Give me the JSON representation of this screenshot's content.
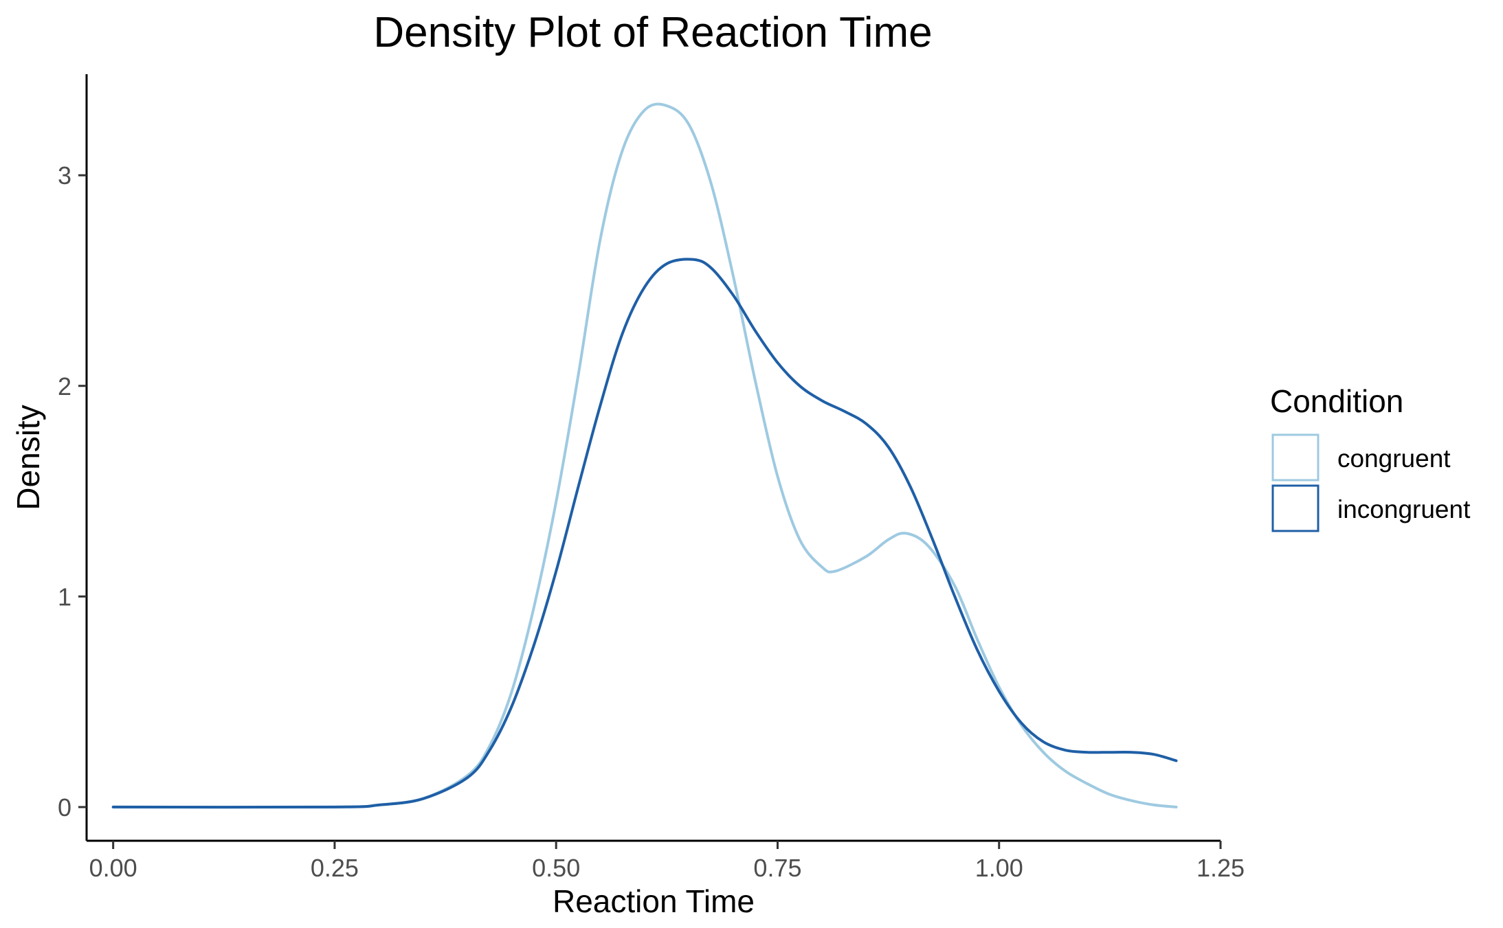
{
  "chart_data": {
    "type": "line",
    "title": "Density Plot of Reaction Time",
    "xlabel": "Reaction Time",
    "ylabel": "Density",
    "xlim": [
      -0.03,
      1.25
    ],
    "ylim": [
      -0.16,
      3.48
    ],
    "x_ticks": [
      0.0,
      0.25,
      0.5,
      0.75,
      1.0,
      1.25
    ],
    "x_tick_labels": [
      "0.00",
      "0.25",
      "0.50",
      "0.75",
      "1.00",
      "1.25"
    ],
    "y_ticks": [
      0,
      1,
      2,
      3
    ],
    "y_tick_labels": [
      "0",
      "1",
      "2",
      "3"
    ],
    "grid": false,
    "legend": {
      "title": "Condition",
      "position": "right"
    },
    "series": [
      {
        "name": "congruent",
        "color": "#9ecae1",
        "x": [
          0.0,
          0.25,
          0.3,
          0.35,
          0.4,
          0.425,
          0.45,
          0.475,
          0.5,
          0.525,
          0.55,
          0.575,
          0.6,
          0.625,
          0.65,
          0.675,
          0.7,
          0.725,
          0.75,
          0.775,
          0.8,
          0.815,
          0.85,
          0.875,
          0.895,
          0.92,
          0.95,
          0.975,
          1.0,
          1.025,
          1.05,
          1.075,
          1.1,
          1.125,
          1.15,
          1.175,
          1.2
        ],
        "y": [
          0.0,
          0.0,
          0.01,
          0.04,
          0.15,
          0.29,
          0.55,
          0.95,
          1.45,
          2.05,
          2.7,
          3.12,
          3.31,
          3.33,
          3.24,
          2.96,
          2.52,
          2.02,
          1.57,
          1.27,
          1.14,
          1.12,
          1.19,
          1.27,
          1.3,
          1.24,
          1.05,
          0.8,
          0.57,
          0.39,
          0.26,
          0.17,
          0.11,
          0.06,
          0.03,
          0.01,
          0.0
        ]
      },
      {
        "name": "incongruent",
        "color": "#1f5fa6",
        "x": [
          0.0,
          0.25,
          0.3,
          0.35,
          0.4,
          0.425,
          0.45,
          0.475,
          0.5,
          0.525,
          0.55,
          0.575,
          0.6,
          0.625,
          0.655,
          0.675,
          0.7,
          0.725,
          0.75,
          0.775,
          0.8,
          0.825,
          0.85,
          0.875,
          0.9,
          0.925,
          0.95,
          0.975,
          1.0,
          1.025,
          1.05,
          1.075,
          1.1,
          1.125,
          1.15,
          1.175,
          1.2
        ],
        "y": [
          0.0,
          0.0,
          0.01,
          0.04,
          0.14,
          0.27,
          0.48,
          0.77,
          1.12,
          1.52,
          1.91,
          2.25,
          2.47,
          2.58,
          2.6,
          2.56,
          2.43,
          2.26,
          2.11,
          2.0,
          1.93,
          1.88,
          1.82,
          1.71,
          1.52,
          1.27,
          1.0,
          0.75,
          0.55,
          0.4,
          0.31,
          0.27,
          0.26,
          0.26,
          0.26,
          0.25,
          0.22
        ]
      }
    ]
  }
}
